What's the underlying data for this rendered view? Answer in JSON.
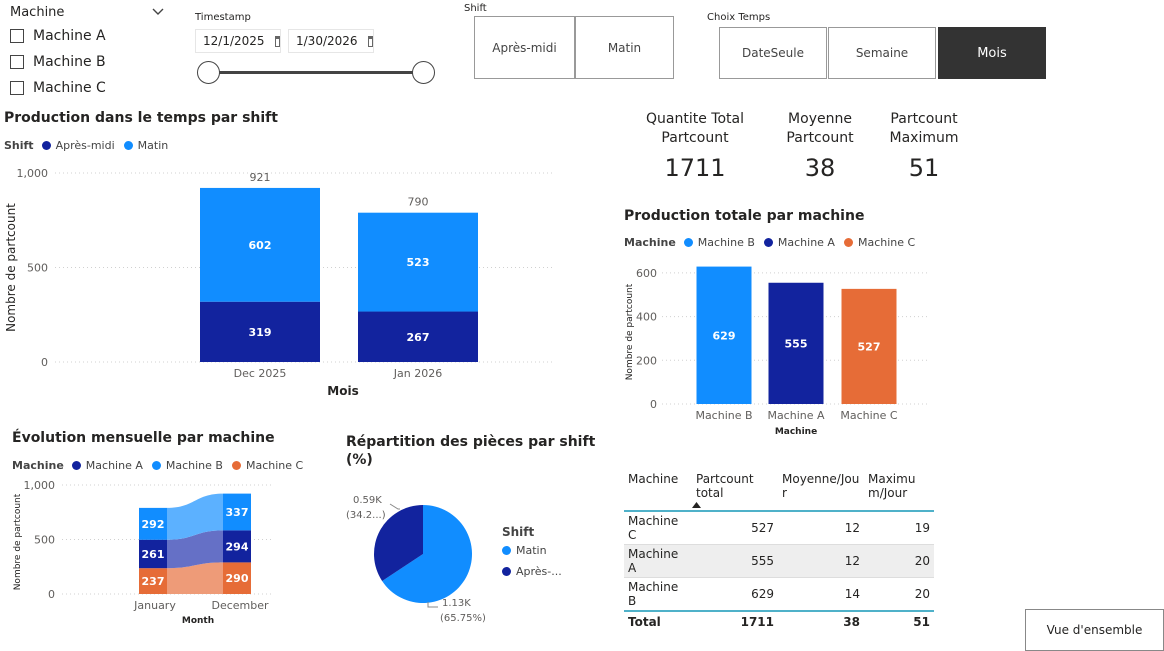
{
  "slicers": {
    "machine": {
      "title": "Machine",
      "options": [
        "Machine A",
        "Machine B",
        "Machine C"
      ]
    },
    "timestamp": {
      "title": "Timestamp",
      "start": "12/1/2025",
      "end": "1/30/2026"
    },
    "shift": {
      "title": "Shift",
      "options": [
        "Après-midi",
        "Matin"
      ]
    },
    "choix_temps": {
      "title": "Choix Temps",
      "options": [
        "DateSeule",
        "Semaine",
        "Mois"
      ],
      "selected": "Mois"
    }
  },
  "kpis": [
    {
      "label1": "Quantite Total",
      "label2": "Partcount",
      "value": "1711"
    },
    {
      "label1": "Moyenne",
      "label2": "Partcount",
      "value": "38"
    },
    {
      "label1": "Partcount",
      "label2": "Maximum",
      "value": "51"
    }
  ],
  "colors": {
    "apres_midi": "#12239E",
    "matin": "#118DFF",
    "machine_a": "#12239E",
    "machine_b": "#118DFF",
    "machine_c": "#E66C37",
    "selected_tile": "#333333"
  },
  "chart_data": [
    {
      "id": "production_temps_shift",
      "type": "bar",
      "stacked": true,
      "title": "Production dans le temps par shift",
      "legend_title": "Shift",
      "categories": [
        "Dec 2025",
        "Jan 2026"
      ],
      "series": [
        {
          "name": "Après-midi",
          "values": [
            319,
            267
          ]
        },
        {
          "name": "Matin",
          "values": [
            602,
            523
          ]
        }
      ],
      "totals": [
        921,
        790
      ],
      "xlabel": "Mois",
      "ylabel": "Nombre de partcount",
      "ylim": [
        0,
        1000
      ],
      "yticks": [
        0,
        500,
        1000
      ],
      "ytick_labels": [
        "0",
        "500",
        "1,000"
      ],
      "legend": "top-left"
    },
    {
      "id": "production_totale_machine",
      "type": "bar",
      "title": "Production totale par machine",
      "legend_title": "Machine",
      "categories": [
        "Machine B",
        "Machine A",
        "Machine C"
      ],
      "values": [
        629,
        555,
        527
      ],
      "xlabel": "Machine",
      "ylabel": "Nombre de partcount",
      "ylim": [
        0,
        650
      ],
      "yticks": [
        0,
        200,
        400,
        600
      ],
      "legend": "top-left"
    },
    {
      "id": "evolution_mensuelle",
      "type": "bar",
      "stacked": true,
      "ribbon": true,
      "title": "Évolution mensuelle par machine",
      "legend_title": "Machine",
      "categories": [
        "January",
        "December"
      ],
      "series": [
        {
          "name": "Machine A",
          "values": [
            261,
            294
          ]
        },
        {
          "name": "Machine B",
          "values": [
            292,
            337
          ]
        },
        {
          "name": "Machine C",
          "values": [
            237,
            290
          ]
        }
      ],
      "xlabel": "Month",
      "ylabel": "Nombre de partcount",
      "ylim": [
        0,
        1000
      ],
      "yticks": [
        0,
        500,
        1000
      ],
      "ytick_labels": [
        "0",
        "500",
        "1,000"
      ],
      "legend": "top-left"
    },
    {
      "id": "repartition_shift",
      "type": "pie",
      "title_line1": "Répartition des pièces par shift",
      "title_line2": "(%)",
      "legend_title": "Shift",
      "slices": [
        {
          "name": "Matin",
          "value": 1130,
          "label1": "1.13K",
          "label2": "(65.75%)",
          "legend_label": "Matin"
        },
        {
          "name": "Après-midi",
          "value": 590,
          "label1": "0.59K",
          "label2": "(34.2...)",
          "legend_label": "Après-..."
        }
      ],
      "legend": "right"
    }
  ],
  "table": {
    "headers": [
      "Machine",
      "Partcount total",
      "Moyenne/Jour",
      "Maximum/Jour"
    ],
    "rows": [
      [
        "Machine C",
        "527",
        "12",
        "19"
      ],
      [
        "Machine A",
        "555",
        "12",
        "20"
      ],
      [
        "Machine B",
        "629",
        "14",
        "20"
      ]
    ],
    "total": [
      "Total",
      "1711",
      "38",
      "51"
    ]
  },
  "button": {
    "label": "Vue d'ensemble"
  }
}
